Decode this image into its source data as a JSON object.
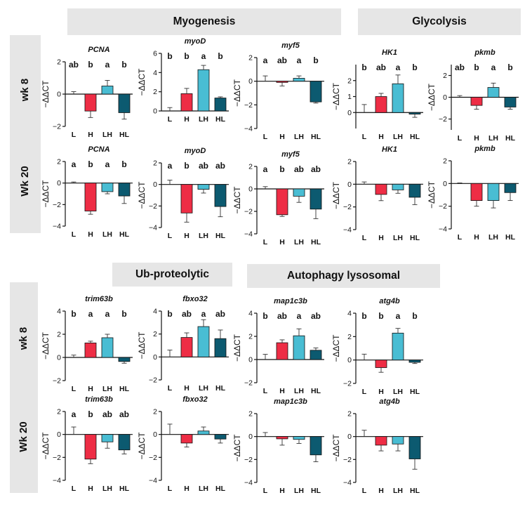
{
  "sections": {
    "myogenesis": "Myogenesis",
    "glycolysis": "Glycolysis",
    "ub_proteolytic": "Ub-proteolytic",
    "autophagy": "Autophagy lysosomal"
  },
  "rows": {
    "top_wk8": "wk 8",
    "top_wk20": "Wk 20",
    "bottom_wk8": "wk 8",
    "bottom_wk20": "Wk 20"
  },
  "colors": {
    "L": "#ffffff",
    "H": "#ee2d45",
    "LH": "#49bdd3",
    "HL": "#0c5a70"
  },
  "chart_data": [
    {
      "type": "bar",
      "title": "PCNA",
      "ylabel": "−ΔΔCT",
      "ylim": [
        -2,
        2
      ],
      "yticks": [
        -2,
        0,
        2
      ],
      "categories": [
        "L",
        "H",
        "LH",
        "HL"
      ],
      "values": [
        0.0,
        -1.05,
        0.5,
        -1.15
      ],
      "errors": [
        0.15,
        0.4,
        0.35,
        0.4
      ],
      "letters": [
        "ab",
        "b",
        "a",
        "b"
      ]
    },
    {
      "type": "bar",
      "title": "myoD",
      "ylabel": "−ΔΔCT",
      "ylim": [
        0,
        6
      ],
      "yticks": [
        0,
        2,
        4,
        6
      ],
      "categories": [
        "L",
        "H",
        "LH",
        "HL"
      ],
      "values": [
        0.0,
        1.8,
        4.3,
        1.35
      ],
      "errors": [
        0.35,
        0.55,
        0.45,
        0.12
      ],
      "letters": [
        "b",
        "b",
        "a",
        "b"
      ]
    },
    {
      "type": "bar",
      "title": "myf5",
      "ylabel": "−ΔΔCT",
      "ylim": [
        -4,
        2
      ],
      "yticks": [
        -4,
        -2,
        0,
        2
      ],
      "categories": [
        "L",
        "H",
        "LH",
        "HL"
      ],
      "values": [
        0.0,
        -0.1,
        0.25,
        -1.75
      ],
      "errors": [
        0.45,
        0.3,
        0.2,
        0.1
      ],
      "letters": [
        "a",
        "ab",
        "a",
        "b"
      ]
    },
    {
      "type": "bar",
      "title": "HK1",
      "ylabel": "−ΔΔCT",
      "ylim": [
        -1,
        3
      ],
      "yticks": [
        0,
        1,
        2
      ],
      "categories": [
        "L",
        "H",
        "LH",
        "HL"
      ],
      "values": [
        0.0,
        1.0,
        1.8,
        -0.1
      ],
      "errors": [
        0.5,
        0.2,
        0.55,
        0.2
      ],
      "letters": [
        "b",
        "ab",
        "a",
        "b"
      ]
    },
    {
      "type": "bar",
      "title": "pkmb",
      "ylabel": "−ΔΔCT",
      "ylim": [
        -3,
        3
      ],
      "yticks": [
        -2,
        0,
        2
      ],
      "categories": [
        "L",
        "H",
        "LH",
        "HL"
      ],
      "values": [
        0.0,
        -0.75,
        0.9,
        -0.9
      ],
      "errors": [
        0.15,
        0.35,
        0.4,
        0.2
      ],
      "letters": [
        "ab",
        "b",
        "a",
        "b"
      ]
    },
    {
      "type": "bar",
      "title": "PCNA",
      "ylabel": "−ΔΔCT",
      "ylim": [
        -4,
        2
      ],
      "yticks": [
        -4,
        -2,
        0,
        2
      ],
      "categories": [
        "L",
        "H",
        "LH",
        "HL"
      ],
      "values": [
        0.0,
        -2.6,
        -0.8,
        -1.2
      ],
      "errors": [
        0.1,
        0.3,
        0.2,
        0.7
      ],
      "letters": [
        "a",
        "b",
        "a",
        "b"
      ]
    },
    {
      "type": "bar",
      "title": "myoD",
      "ylabel": "−ΔΔCT",
      "ylim": [
        -4,
        2
      ],
      "yticks": [
        -4,
        -2,
        0,
        2
      ],
      "categories": [
        "L",
        "H",
        "LH",
        "HL"
      ],
      "values": [
        0.0,
        -2.65,
        -0.45,
        -2.05
      ],
      "errors": [
        0.4,
        0.85,
        0.35,
        0.95
      ],
      "letters": [
        "a",
        "b",
        "ab",
        "ab"
      ]
    },
    {
      "type": "bar",
      "title": "myf5",
      "ylabel": "−ΔΔCT",
      "ylim": [
        -4,
        2
      ],
      "yticks": [
        -4,
        -2,
        0,
        2
      ],
      "categories": [
        "L",
        "H",
        "LH",
        "HL"
      ],
      "values": [
        0.0,
        -2.3,
        -0.65,
        -1.8
      ],
      "errors": [
        0.2,
        0.15,
        0.55,
        0.85
      ],
      "letters": [
        "a",
        "b",
        "ab",
        "ab"
      ]
    },
    {
      "type": "bar",
      "title": "HK1",
      "ylabel": "−ΔΔCT",
      "ylim": [
        -4,
        2
      ],
      "yticks": [
        -4,
        -2,
        0,
        2
      ],
      "categories": [
        "L",
        "H",
        "LH",
        "HL"
      ],
      "values": [
        0.0,
        -0.9,
        -0.5,
        -1.15
      ],
      "errors": [
        0.2,
        0.55,
        0.3,
        0.65
      ],
      "letters": []
    },
    {
      "type": "bar",
      "title": "pkmb",
      "ylabel": "−ΔΔCT",
      "ylim": [
        -4,
        2
      ],
      "yticks": [
        -4,
        -2,
        0,
        2
      ],
      "categories": [
        "L",
        "H",
        "LH",
        "HL"
      ],
      "values": [
        0.0,
        -1.5,
        -1.5,
        -0.8
      ],
      "errors": [
        0.05,
        0.5,
        0.65,
        0.7
      ],
      "letters": []
    },
    {
      "type": "bar",
      "title": "trim63b",
      "ylabel": "−ΔΔCT",
      "ylim": [
        -2,
        4
      ],
      "yticks": [
        -2,
        0,
        2,
        4
      ],
      "categories": [
        "L",
        "H",
        "LH",
        "HL"
      ],
      "values": [
        0.0,
        1.25,
        1.7,
        -0.35
      ],
      "errors": [
        0.2,
        0.15,
        0.3,
        0.15
      ],
      "letters": [
        "b",
        "a",
        "a",
        "b"
      ]
    },
    {
      "type": "bar",
      "title": "fbxo32",
      "ylabel": "−ΔΔCT",
      "ylim": [
        -2,
        4
      ],
      "yticks": [
        -2,
        0,
        2,
        4
      ],
      "categories": [
        "L",
        "H",
        "LH",
        "HL"
      ],
      "values": [
        0.0,
        1.7,
        2.65,
        1.6
      ],
      "errors": [
        0.6,
        0.4,
        0.6,
        0.75
      ],
      "letters": [
        "b",
        "ab",
        "a",
        "ab"
      ]
    },
    {
      "type": "bar",
      "title": "map1c3b",
      "ylabel": "−ΔΔCT",
      "ylim": [
        -2,
        4
      ],
      "yticks": [
        -2,
        0,
        2,
        4
      ],
      "categories": [
        "L",
        "H",
        "LH",
        "HL"
      ],
      "values": [
        0.0,
        1.45,
        2.05,
        0.8
      ],
      "errors": [
        0.45,
        0.25,
        0.6,
        0.2
      ],
      "letters": [
        "b",
        "ab",
        "a",
        "ab"
      ]
    },
    {
      "type": "bar",
      "title": "atg4b",
      "ylabel": "−ΔΔCT",
      "ylim": [
        -2,
        4
      ],
      "yticks": [
        -2,
        0,
        2,
        4
      ],
      "categories": [
        "L",
        "H",
        "LH",
        "HL"
      ],
      "values": [
        0.0,
        -0.65,
        2.3,
        -0.2
      ],
      "errors": [
        0.5,
        0.4,
        0.4,
        0.1
      ],
      "letters": [
        "b",
        "b",
        "a",
        "b"
      ]
    },
    {
      "type": "bar",
      "title": "trim63b",
      "ylabel": "−ΔΔCT",
      "ylim": [
        -4,
        2
      ],
      "yticks": [
        -4,
        -2,
        0,
        2
      ],
      "categories": [
        "L",
        "H",
        "LH",
        "HL"
      ],
      "values": [
        0.0,
        -2.15,
        -0.65,
        -1.35
      ],
      "errors": [
        0.65,
        0.4,
        0.55,
        0.35
      ],
      "letters": [
        "a",
        "b",
        "ab",
        "ab"
      ]
    },
    {
      "type": "bar",
      "title": "fbxo32",
      "ylabel": "−ΔΔCT",
      "ylim": [
        -4,
        2
      ],
      "yticks": [
        -4,
        -2,
        0,
        2
      ],
      "categories": [
        "L",
        "H",
        "LH",
        "HL"
      ],
      "values": [
        0.0,
        -0.75,
        0.3,
        -0.4
      ],
      "errors": [
        0.9,
        0.35,
        0.35,
        0.35
      ],
      "letters": []
    },
    {
      "type": "bar",
      "title": "map1c3b",
      "ylabel": "−ΔΔCT",
      "ylim": [
        -4,
        2
      ],
      "yticks": [
        -4,
        -2,
        0,
        2
      ],
      "categories": [
        "L",
        "H",
        "LH",
        "HL"
      ],
      "values": [
        0.0,
        -0.2,
        -0.25,
        -1.6
      ],
      "errors": [
        0.35,
        0.55,
        0.35,
        0.6
      ],
      "letters": []
    },
    {
      "type": "bar",
      "title": "atg4b",
      "ylabel": "−ΔΔCT",
      "ylim": [
        -4,
        2
      ],
      "yticks": [
        -4,
        -2,
        0,
        2
      ],
      "categories": [
        "L",
        "H",
        "LH",
        "HL"
      ],
      "values": [
        0.0,
        -0.75,
        -0.65,
        -1.95
      ],
      "errors": [
        0.55,
        0.5,
        0.6,
        0.9
      ],
      "letters": []
    }
  ]
}
